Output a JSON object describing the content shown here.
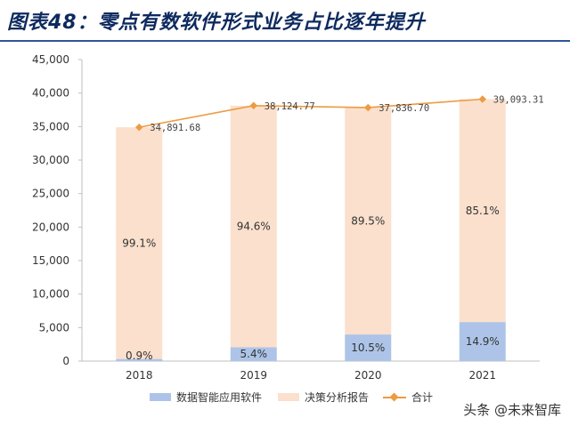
{
  "title": "图表48：零点有数软件形式业务占比逐年提升",
  "watermark": "头条 @未来智库",
  "colors": {
    "data_intel": "#adc4e8",
    "decision": "#fbe0cd",
    "total": "#ed9b42",
    "title": "#0d2a5e",
    "rule": "#2f5597"
  },
  "legend": {
    "data_intel": "数据智能应用软件",
    "decision": "决策分析报告",
    "total": "合计"
  },
  "chart_data": {
    "type": "bar",
    "stacked": true,
    "categories": [
      "2018",
      "2019",
      "2020",
      "2021"
    ],
    "ylim": [
      0,
      45000
    ],
    "yticks": [
      "0",
      "5,000",
      "10,000",
      "15,000",
      "20,000",
      "25,000",
      "30,000",
      "35,000",
      "40,000",
      "45,000"
    ],
    "series": [
      {
        "name": "数据智能应用软件",
        "values": [
          314.03,
          2058.74,
          3972.85,
          5824.9
        ],
        "labels": [
          "0.9%",
          "5.4%",
          "10.5%",
          "14.9%"
        ]
      },
      {
        "name": "决策分析报告",
        "values": [
          34577.65,
          36066.03,
          33863.85,
          33268.41
        ],
        "labels": [
          "99.1%",
          "94.6%",
          "89.5%",
          "85.1%"
        ]
      }
    ],
    "total": {
      "name": "合计",
      "type": "line",
      "values": [
        34891.68,
        38124.77,
        37836.7,
        39093.31
      ],
      "labels": [
        "34,891.68",
        "38,124.77",
        "37,836.70",
        "39,093.31"
      ]
    }
  }
}
